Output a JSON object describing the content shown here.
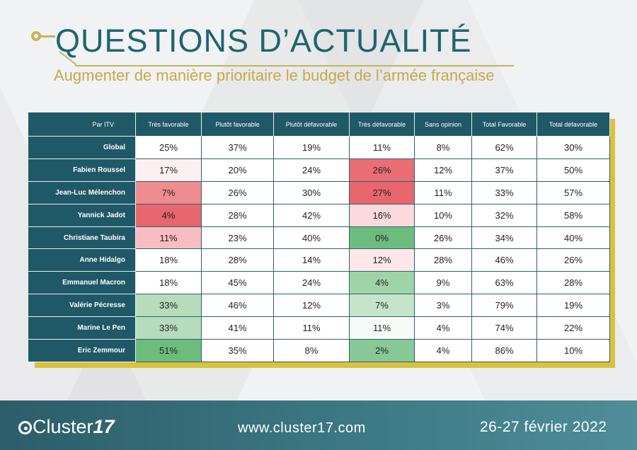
{
  "header": {
    "title": "QUESTIONS D’ACTUALITÉ",
    "subtitle": "Augmenter de manière prioritaire le budget de l’armée française"
  },
  "colors": {
    "header_bg": "#1f5866",
    "accent_gold": "#c9b25a",
    "red_strong": "#e8666d",
    "red_medium": "#f2a7ab",
    "red_light": "#fde7e9",
    "green_strong": "#6cbc7e",
    "green_medium": "#9fd3a8",
    "green_light": "#cfe8d2"
  },
  "table": {
    "columns": [
      "Par ITV",
      "Très favorable",
      "Plutôt favorable",
      "Plutôt défavorable",
      "Très défavorable",
      "Sans opinion",
      "Total Favorable",
      "Total défavorable"
    ],
    "rows": [
      {
        "name": "Global",
        "values": [
          "25%",
          "37%",
          "19%",
          "11%",
          "8%",
          "62%",
          "30%"
        ],
        "colors": [
          "",
          "",
          "",
          "",
          "",
          "",
          ""
        ]
      },
      {
        "name": "Fabien Roussel",
        "values": [
          "17%",
          "20%",
          "24%",
          "26%",
          "12%",
          "37%",
          "50%"
        ],
        "colors": [
          "#fdf0f1",
          "",
          "",
          "#ea6f75",
          "",
          "",
          ""
        ]
      },
      {
        "name": "Jean-Luc Mélenchon",
        "values": [
          "7%",
          "26%",
          "30%",
          "27%",
          "11%",
          "33%",
          "57%"
        ],
        "colors": [
          "#ee8c90",
          "",
          "",
          "#e8666d",
          "",
          "",
          ""
        ]
      },
      {
        "name": "Yannick Jadot",
        "values": [
          "4%",
          "28%",
          "42%",
          "16%",
          "10%",
          "32%",
          "58%"
        ],
        "colors": [
          "#e8666d",
          "",
          "",
          "#fbd9dc",
          "",
          "",
          ""
        ]
      },
      {
        "name": "Christiane Taubira",
        "values": [
          "11%",
          "23%",
          "40%",
          "0%",
          "26%",
          "34%",
          "40%"
        ],
        "colors": [
          "#f7bdc1",
          "",
          "",
          "#6cbc7e",
          "",
          "",
          ""
        ]
      },
      {
        "name": "Anne Hidalgo",
        "values": [
          "18%",
          "28%",
          "14%",
          "12%",
          "28%",
          "46%",
          "26%"
        ],
        "colors": [
          "",
          "",
          "",
          "#fde7e9",
          "",
          "",
          ""
        ]
      },
      {
        "name": "Emmanuel Macron",
        "values": [
          "18%",
          "45%",
          "24%",
          "4%",
          "9%",
          "63%",
          "28%"
        ],
        "colors": [
          "",
          "",
          "",
          "#9fd3a8",
          "",
          "",
          ""
        ]
      },
      {
        "name": "Valérie Pécresse",
        "values": [
          "33%",
          "46%",
          "12%",
          "7%",
          "3%",
          "79%",
          "19%"
        ],
        "colors": [
          "#b6dcbc",
          "",
          "",
          "#c5e4ca",
          "",
          "",
          ""
        ]
      },
      {
        "name": "Marine Le Pen",
        "values": [
          "33%",
          "41%",
          "11%",
          "11%",
          "4%",
          "74%",
          "22%"
        ],
        "colors": [
          "#b6dcbc",
          "",
          "",
          "#f7fbf7",
          "",
          "",
          ""
        ]
      },
      {
        "name": "Eric Zemmour",
        "values": [
          "51%",
          "35%",
          "8%",
          "2%",
          "4%",
          "86%",
          "10%"
        ],
        "colors": [
          "#6cbc7e",
          "",
          "",
          "#88c896",
          "",
          "",
          ""
        ]
      }
    ]
  },
  "footer": {
    "logo_text": "Cluster",
    "logo_number": "17",
    "url": "www.cluster17.com",
    "date": "26-27 février 2022"
  }
}
